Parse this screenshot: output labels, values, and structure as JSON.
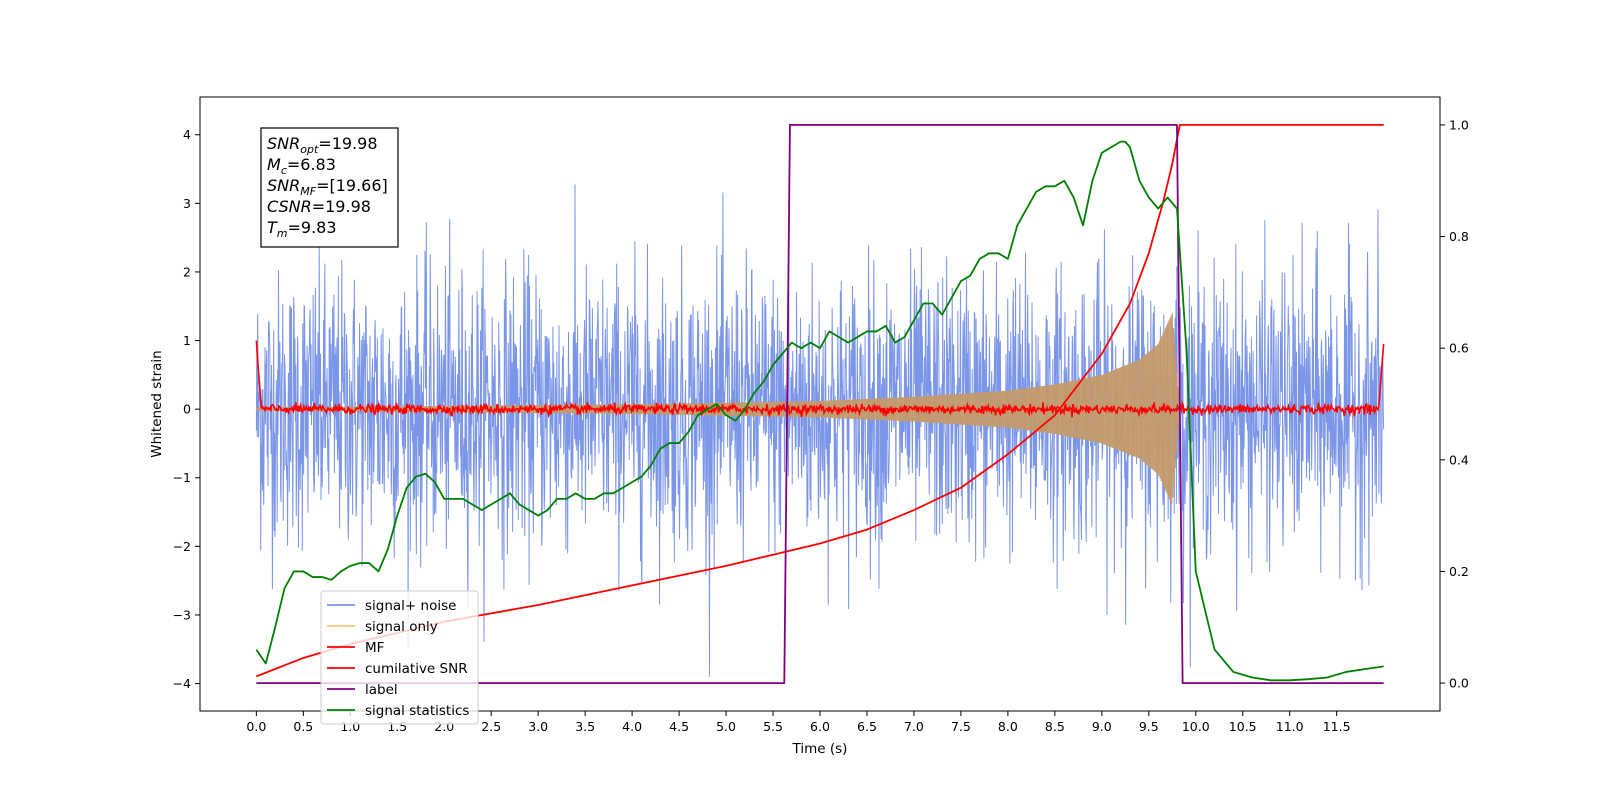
{
  "chart_data": {
    "type": "line",
    "xlabel": "Time (s)",
    "ylabel": "Whitened strain",
    "xlim": [
      -0.6,
      12.6
    ],
    "ylim": [
      -4.4,
      4.55
    ],
    "y2lim": [
      -0.05,
      1.05
    ],
    "x_ticks": [
      0.0,
      0.5,
      1.0,
      1.5,
      2.0,
      2.5,
      3.0,
      3.5,
      4.0,
      4.5,
      5.0,
      5.5,
      6.0,
      6.5,
      7.0,
      7.5,
      8.0,
      8.5,
      9.0,
      9.5,
      10.0,
      10.5,
      11.0,
      11.5
    ],
    "x_tick_labels": [
      "0.0",
      "0.5",
      "1.0",
      "1.5",
      "2.0",
      "2.5",
      "3.0",
      "3.5",
      "4.0",
      "4.5",
      "5.0",
      "5.5",
      "6.0",
      "6.5",
      "7.0",
      "7.5",
      "8.0",
      "8.5",
      "9.0",
      "9.5",
      "10.0",
      "10.5",
      "11.0",
      "11.5"
    ],
    "y_ticks": [
      -4,
      -3,
      -2,
      -1,
      0,
      1,
      2,
      3,
      4
    ],
    "y_tick_labels": [
      "−4",
      "−3",
      "−2",
      "−1",
      "0",
      "1",
      "2",
      "3",
      "4"
    ],
    "y2_ticks": [
      0.0,
      0.2,
      0.4,
      0.6,
      0.8,
      1.0
    ],
    "y2_tick_labels": [
      "0.0",
      "0.2",
      "0.4",
      "0.6",
      "0.8",
      "1.0"
    ],
    "legend": {
      "placement": "lower-left",
      "entries": [
        {
          "label": "signal+ noise",
          "color": "#7b96e8"
        },
        {
          "label": "signal only",
          "color": "#f5c97a"
        },
        {
          "label": "MF",
          "color": "#ff0000"
        },
        {
          "label": "cumilative SNR",
          "color": "#ff0000"
        },
        {
          "label": "label",
          "color": "#800080"
        },
        {
          "label": "signal statistics",
          "color": "#008000"
        }
      ]
    },
    "annotation": {
      "lines": [
        {
          "base": "SNR",
          "sub": "opt",
          "value": "=19.98"
        },
        {
          "base": "M",
          "sub": "c",
          "value": "=6.83"
        },
        {
          "base": "SNR",
          "sub": "MF",
          "value": "=[19.66]"
        },
        {
          "base": "CSNR",
          "sub": "",
          "value": "=19.98"
        },
        {
          "base": "T",
          "sub": "m",
          "value": "=9.83"
        }
      ]
    },
    "series": [
      {
        "name": "signal+ noise",
        "axis": "left",
        "color": "#7b96e8",
        "style": "noise",
        "x_range": [
          0.0,
          12.0
        ],
        "envelope": [
          -3.9,
          4.05
        ],
        "sigma": 1.0
      },
      {
        "name": "signal only",
        "axis": "left",
        "color": "#c49a6c",
        "style": "chirp",
        "x_range": [
          0.0,
          9.83
        ],
        "amplitude_points": [
          [
            0.0,
            0.02
          ],
          [
            4.0,
            0.07
          ],
          [
            6.0,
            0.12
          ],
          [
            7.0,
            0.18
          ],
          [
            8.0,
            0.27
          ],
          [
            8.5,
            0.36
          ],
          [
            9.0,
            0.5
          ],
          [
            9.4,
            0.72
          ],
          [
            9.6,
            0.95
          ],
          [
            9.75,
            1.4
          ],
          [
            9.83,
            0.0
          ]
        ]
      },
      {
        "name": "MF",
        "axis": "left",
        "color": "#ff0000",
        "style": "mf",
        "x_range": [
          0.0,
          12.0
        ],
        "points": [
          [
            0.0,
            1.0
          ],
          [
            0.02,
            0.6
          ],
          [
            0.05,
            0.05
          ],
          [
            11.95,
            0.05
          ],
          [
            11.98,
            0.6
          ],
          [
            12.0,
            0.95
          ]
        ]
      },
      {
        "name": "cumilative SNR",
        "axis": "right",
        "color": "#ff0000",
        "x": [
          0.0,
          0.5,
          1.0,
          1.5,
          2.0,
          3.0,
          4.0,
          5.0,
          5.5,
          6.0,
          6.5,
          7.0,
          7.5,
          8.0,
          8.5,
          9.0,
          9.3,
          9.5,
          9.65,
          9.75,
          9.83,
          12.0
        ],
        "y": [
          0.012,
          0.045,
          0.07,
          0.09,
          0.11,
          0.14,
          0.175,
          0.21,
          0.23,
          0.25,
          0.275,
          0.31,
          0.35,
          0.41,
          0.48,
          0.59,
          0.68,
          0.77,
          0.86,
          0.93,
          1.0,
          1.0
        ]
      },
      {
        "name": "label",
        "axis": "right",
        "color": "#800080",
        "x": [
          0.0,
          5.62,
          5.68,
          9.8,
          9.86,
          12.0
        ],
        "y": [
          0.0,
          0.0,
          1.0,
          1.0,
          0.0,
          0.0
        ]
      },
      {
        "name": "signal statistics",
        "axis": "right",
        "color": "#008000",
        "x": [
          0.0,
          0.1,
          0.2,
          0.3,
          0.4,
          0.5,
          0.6,
          0.7,
          0.8,
          0.9,
          1.0,
          1.1,
          1.2,
          1.3,
          1.4,
          1.5,
          1.6,
          1.7,
          1.8,
          1.9,
          2.0,
          2.1,
          2.2,
          2.3,
          2.4,
          2.5,
          2.6,
          2.7,
          2.8,
          2.9,
          3.0,
          3.1,
          3.2,
          3.3,
          3.4,
          3.5,
          3.6,
          3.7,
          3.8,
          3.9,
          4.0,
          4.1,
          4.2,
          4.3,
          4.4,
          4.5,
          4.6,
          4.7,
          4.8,
          4.9,
          5.0,
          5.1,
          5.2,
          5.3,
          5.4,
          5.5,
          5.6,
          5.7,
          5.8,
          5.9,
          6.0,
          6.1,
          6.2,
          6.3,
          6.4,
          6.5,
          6.6,
          6.7,
          6.8,
          6.9,
          7.0,
          7.1,
          7.2,
          7.3,
          7.4,
          7.5,
          7.6,
          7.7,
          7.8,
          7.9,
          8.0,
          8.1,
          8.2,
          8.3,
          8.4,
          8.5,
          8.6,
          8.7,
          8.8,
          8.9,
          9.0,
          9.1,
          9.2,
          9.25,
          9.3,
          9.4,
          9.5,
          9.6,
          9.7,
          9.8,
          9.9,
          10.0,
          10.2,
          10.4,
          10.6,
          10.8,
          11.0,
          11.2,
          11.4,
          11.6,
          11.8,
          12.0
        ],
        "y": [
          0.06,
          0.035,
          0.1,
          0.17,
          0.2,
          0.2,
          0.19,
          0.19,
          0.185,
          0.2,
          0.21,
          0.215,
          0.215,
          0.2,
          0.24,
          0.3,
          0.35,
          0.37,
          0.375,
          0.36,
          0.33,
          0.33,
          0.33,
          0.32,
          0.31,
          0.32,
          0.33,
          0.34,
          0.32,
          0.31,
          0.3,
          0.31,
          0.33,
          0.33,
          0.34,
          0.33,
          0.33,
          0.34,
          0.34,
          0.35,
          0.36,
          0.37,
          0.39,
          0.42,
          0.43,
          0.43,
          0.45,
          0.48,
          0.49,
          0.5,
          0.48,
          0.47,
          0.49,
          0.52,
          0.54,
          0.57,
          0.59,
          0.61,
          0.6,
          0.61,
          0.6,
          0.63,
          0.62,
          0.61,
          0.62,
          0.63,
          0.63,
          0.64,
          0.61,
          0.62,
          0.65,
          0.68,
          0.68,
          0.66,
          0.69,
          0.72,
          0.73,
          0.76,
          0.77,
          0.77,
          0.76,
          0.82,
          0.85,
          0.88,
          0.89,
          0.89,
          0.9,
          0.87,
          0.82,
          0.9,
          0.95,
          0.96,
          0.97,
          0.97,
          0.96,
          0.9,
          0.87,
          0.85,
          0.87,
          0.85,
          0.6,
          0.2,
          0.06,
          0.02,
          0.01,
          0.005,
          0.005,
          0.007,
          0.01,
          0.02,
          0.025,
          0.03
        ]
      }
    ]
  }
}
